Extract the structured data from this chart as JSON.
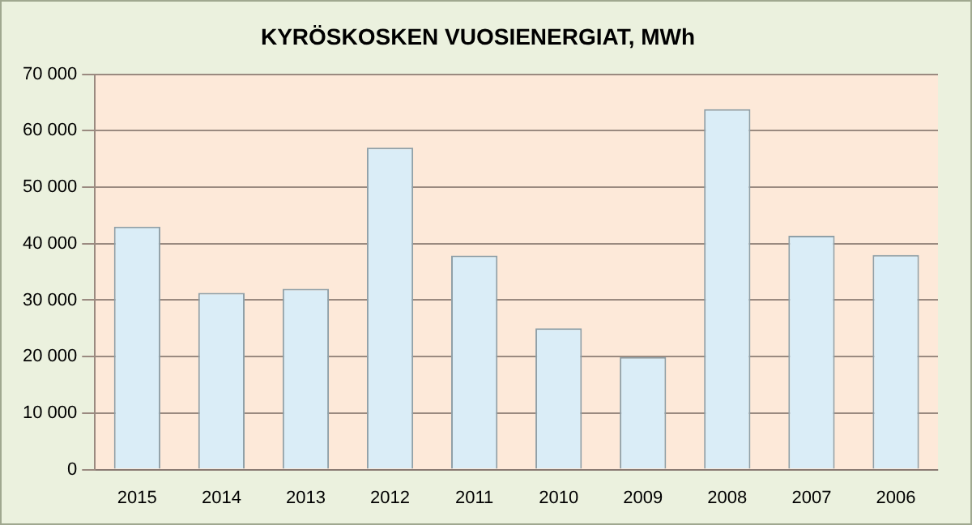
{
  "chart_data": {
    "type": "bar",
    "title": "KYRÖSKOSKEN VUOSIENERGIAT, MWh",
    "categories": [
      "2015",
      "2014",
      "2013",
      "2012",
      "2011",
      "2010",
      "2009",
      "2008",
      "2007",
      "2006"
    ],
    "values": [
      43000,
      31300,
      32000,
      57000,
      37900,
      25000,
      19900,
      63800,
      41400,
      38000
    ],
    "color": "#daedf7",
    "ylim": [
      0,
      70000
    ],
    "yticks": [
      {
        "value": 0,
        "label": "0"
      },
      {
        "value": 10000,
        "label": "10 000"
      },
      {
        "value": 20000,
        "label": "20 000"
      },
      {
        "value": 30000,
        "label": "30 000"
      },
      {
        "value": 40000,
        "label": "40 000"
      },
      {
        "value": 50000,
        "label": "50 000"
      },
      {
        "value": 60000,
        "label": "60 000"
      },
      {
        "value": 70000,
        "label": "70 000"
      }
    ],
    "grid": "y",
    "legend": false
  }
}
